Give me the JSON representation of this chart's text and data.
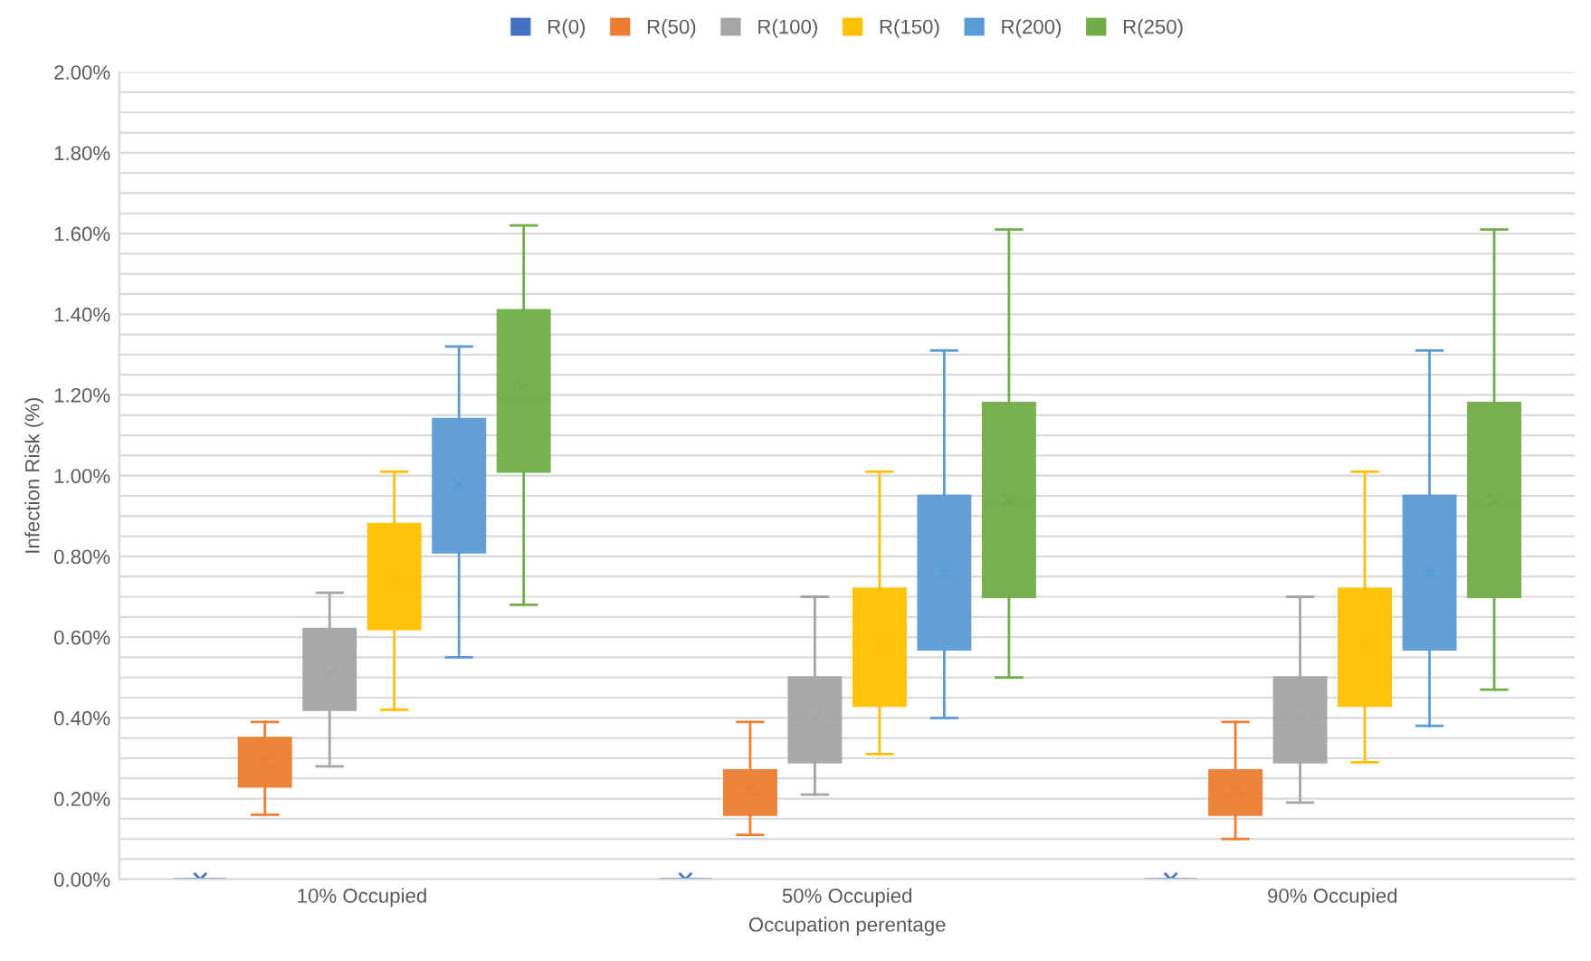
{
  "chart_data": {
    "type": "box",
    "xlabel": "Occupation perentage",
    "ylabel": "Infection Risk (%)",
    "categories": [
      "10% Occupied",
      "50% Occupied",
      "90% Occupied"
    ],
    "series": [
      {
        "name": "R(0)",
        "color": "#4472c4",
        "boxes": [
          {
            "low": 0,
            "q1": 0,
            "median": 0,
            "q3": 0,
            "high": 0,
            "mean": 0
          },
          {
            "low": 0,
            "q1": 0,
            "median": 0,
            "q3": 0,
            "high": 0,
            "mean": 0
          },
          {
            "low": 0,
            "q1": 0,
            "median": 0,
            "q3": 0,
            "high": 0,
            "mean": 0
          }
        ]
      },
      {
        "name": "R(50)",
        "color": "#ed7d31",
        "boxes": [
          {
            "low": 0.16,
            "q1": 0.23,
            "median": 0.28,
            "q3": 0.35,
            "high": 0.39,
            "mean": 0.29
          },
          {
            "low": 0.11,
            "q1": 0.16,
            "median": 0.21,
            "q3": 0.27,
            "high": 0.39,
            "mean": 0.22
          },
          {
            "low": 0.1,
            "q1": 0.16,
            "median": 0.21,
            "q3": 0.27,
            "high": 0.39,
            "mean": 0.22
          }
        ]
      },
      {
        "name": "R(100)",
        "color": "#a5a5a5",
        "boxes": [
          {
            "low": 0.28,
            "q1": 0.42,
            "median": 0.51,
            "q3": 0.62,
            "high": 0.71,
            "mean": 0.51
          },
          {
            "low": 0.21,
            "q1": 0.29,
            "median": 0.4,
            "q3": 0.5,
            "high": 0.7,
            "mean": 0.4
          },
          {
            "low": 0.19,
            "q1": 0.29,
            "median": 0.4,
            "q3": 0.5,
            "high": 0.7,
            "mean": 0.4
          }
        ]
      },
      {
        "name": "R(150)",
        "color": "#ffc000",
        "boxes": [
          {
            "low": 0.42,
            "q1": 0.62,
            "median": 0.73,
            "q3": 0.88,
            "high": 1.01,
            "mean": 0.75
          },
          {
            "low": 0.31,
            "q1": 0.43,
            "median": 0.57,
            "q3": 0.72,
            "high": 1.01,
            "mean": 0.58
          },
          {
            "low": 0.29,
            "q1": 0.43,
            "median": 0.57,
            "q3": 0.72,
            "high": 1.01,
            "mean": 0.58
          }
        ]
      },
      {
        "name": "R(200)",
        "color": "#5b9bd5",
        "boxes": [
          {
            "low": 0.55,
            "q1": 0.81,
            "median": 0.96,
            "q3": 1.14,
            "high": 1.32,
            "mean": 0.98
          },
          {
            "low": 0.4,
            "q1": 0.57,
            "median": 0.75,
            "q3": 0.95,
            "high": 1.31,
            "mean": 0.76
          },
          {
            "low": 0.38,
            "q1": 0.57,
            "median": 0.75,
            "q3": 0.95,
            "high": 1.31,
            "mean": 0.76
          }
        ]
      },
      {
        "name": "R(250)",
        "color": "#70ad47",
        "boxes": [
          {
            "low": 0.68,
            "q1": 1.01,
            "median": 1.19,
            "q3": 1.41,
            "high": 1.62,
            "mean": 1.22
          },
          {
            "low": 0.5,
            "q1": 0.7,
            "median": 0.93,
            "q3": 1.18,
            "high": 1.61,
            "mean": 0.94
          },
          {
            "low": 0.47,
            "q1": 0.7,
            "median": 0.93,
            "q3": 1.18,
            "high": 1.61,
            "mean": 0.94
          }
        ]
      }
    ],
    "ylim": [
      0,
      2
    ],
    "yticks": [
      {
        "value": 0,
        "label": "0.00%"
      },
      {
        "value": 0.05,
        "label": null
      },
      {
        "value": 0.1,
        "label": null
      },
      {
        "value": 0.15,
        "label": null
      },
      {
        "value": 0.2,
        "label": "0.20%"
      },
      {
        "value": 0.25,
        "label": null
      },
      {
        "value": 0.3,
        "label": null
      },
      {
        "value": 0.35,
        "label": null
      },
      {
        "value": 0.4,
        "label": "0.40%"
      },
      {
        "value": 0.45,
        "label": null
      },
      {
        "value": 0.5,
        "label": null
      },
      {
        "value": 0.55,
        "label": null
      },
      {
        "value": 0.6,
        "label": "0.60%"
      },
      {
        "value": 0.65,
        "label": null
      },
      {
        "value": 0.7,
        "label": null
      },
      {
        "value": 0.75,
        "label": null
      },
      {
        "value": 0.8,
        "label": "0.80%"
      },
      {
        "value": 0.85,
        "label": null
      },
      {
        "value": 0.9,
        "label": null
      },
      {
        "value": 0.95,
        "label": null
      },
      {
        "value": 1.0,
        "label": "1.00%"
      },
      {
        "value": 1.05,
        "label": null
      },
      {
        "value": 1.1,
        "label": null
      },
      {
        "value": 1.15,
        "label": null
      },
      {
        "value": 1.2,
        "label": "1.20%"
      },
      {
        "value": 1.25,
        "label": null
      },
      {
        "value": 1.3,
        "label": null
      },
      {
        "value": 1.35,
        "label": null
      },
      {
        "value": 1.4,
        "label": "1.40%"
      },
      {
        "value": 1.45,
        "label": null
      },
      {
        "value": 1.5,
        "label": null
      },
      {
        "value": 1.55,
        "label": null
      },
      {
        "value": 1.6,
        "label": "1.60%"
      },
      {
        "value": 1.65,
        "label": null
      },
      {
        "value": 1.7,
        "label": null
      },
      {
        "value": 1.75,
        "label": null
      },
      {
        "value": 1.8,
        "label": "1.80%"
      },
      {
        "value": 1.85,
        "label": null
      },
      {
        "value": 1.9,
        "label": null
      },
      {
        "value": 1.95,
        "label": null
      },
      {
        "value": 2.0,
        "label": "2.00%"
      }
    ],
    "grid": "y",
    "legend": "top"
  }
}
